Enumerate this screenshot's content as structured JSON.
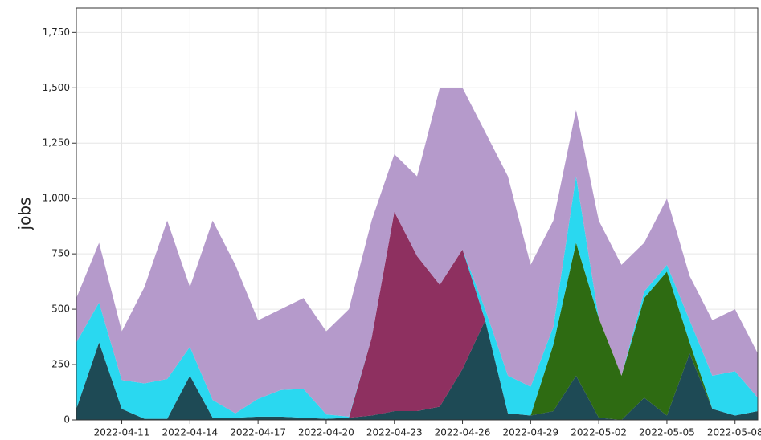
{
  "chart_data": {
    "type": "stacked_area",
    "y_label": "jobs",
    "x": [
      "2022-04-09",
      "2022-04-10",
      "2022-04-11",
      "2022-04-12",
      "2022-04-13",
      "2022-04-14",
      "2022-04-15",
      "2022-04-16",
      "2022-04-17",
      "2022-04-18",
      "2022-04-19",
      "2022-04-20",
      "2022-04-21",
      "2022-04-22",
      "2022-04-23",
      "2022-04-24",
      "2022-04-25",
      "2022-04-26",
      "2022-04-27",
      "2022-04-28",
      "2022-04-29",
      "2022-04-30",
      "2022-05-01",
      "2022-05-02",
      "2022-05-03",
      "2022-05-04",
      "2022-05-05",
      "2022-05-06",
      "2022-05-07",
      "2022-05-08",
      "2022-05-09"
    ],
    "series": [
      {
        "color": "#1e4a55",
        "values": [
          50,
          350,
          50,
          5,
          5,
          200,
          10,
          10,
          15,
          15,
          10,
          5,
          10,
          20,
          40,
          40,
          60,
          230,
          450,
          30,
          20,
          40,
          200,
          10,
          0,
          100,
          20,
          300,
          50,
          20,
          40
        ]
      },
      {
        "color": "#2e6b12",
        "values": [
          0,
          0,
          0,
          0,
          0,
          0,
          0,
          0,
          0,
          0,
          0,
          0,
          0,
          0,
          0,
          0,
          0,
          0,
          0,
          0,
          0,
          300,
          600,
          450,
          200,
          450,
          650,
          50,
          0,
          0,
          0
        ]
      },
      {
        "color": "#8e3060",
        "values": [
          0,
          0,
          0,
          0,
          0,
          0,
          0,
          0,
          0,
          0,
          0,
          0,
          0,
          350,
          900,
          700,
          550,
          540,
          0,
          0,
          0,
          0,
          0,
          0,
          0,
          0,
          0,
          0,
          0,
          0,
          0
        ]
      },
      {
        "color": "#2ad8f0",
        "values": [
          300,
          180,
          130,
          160,
          180,
          130,
          80,
          20,
          80,
          120,
          130,
          20,
          5,
          0,
          0,
          0,
          0,
          0,
          50,
          170,
          130,
          80,
          300,
          0,
          0,
          30,
          30,
          100,
          150,
          200,
          60
        ]
      },
      {
        "color": "#b59acb",
        "values": [
          200,
          270,
          220,
          435,
          715,
          270,
          810,
          670,
          355,
          365,
          410,
          375,
          485,
          530,
          260,
          360,
          890,
          730,
          800,
          900,
          550,
          480,
          300,
          440,
          500,
          220,
          300,
          200,
          250,
          280,
          200
        ]
      }
    ],
    "xlim": [
      "2022-04-09",
      "2022-05-09"
    ],
    "xticks": [
      "2022-04-11",
      "2022-04-14",
      "2022-04-17",
      "2022-04-20",
      "2022-04-23",
      "2022-04-26",
      "2022-04-29",
      "2022-05-02",
      "2022-05-05",
      "2022-05-08"
    ],
    "ylim": [
      0,
      1860
    ],
    "yticks": [
      0,
      {
        "value": 250,
        "label": "250"
      },
      {
        "value": 500,
        "label": "500"
      },
      {
        "value": 750,
        "label": "750"
      },
      {
        "value": 1000,
        "label": "1,000"
      },
      {
        "value": 1250,
        "label": "1,250"
      },
      {
        "value": 1500,
        "label": "1,500"
      },
      {
        "value": 1750,
        "label": "1,750"
      }
    ],
    "grid": true
  }
}
